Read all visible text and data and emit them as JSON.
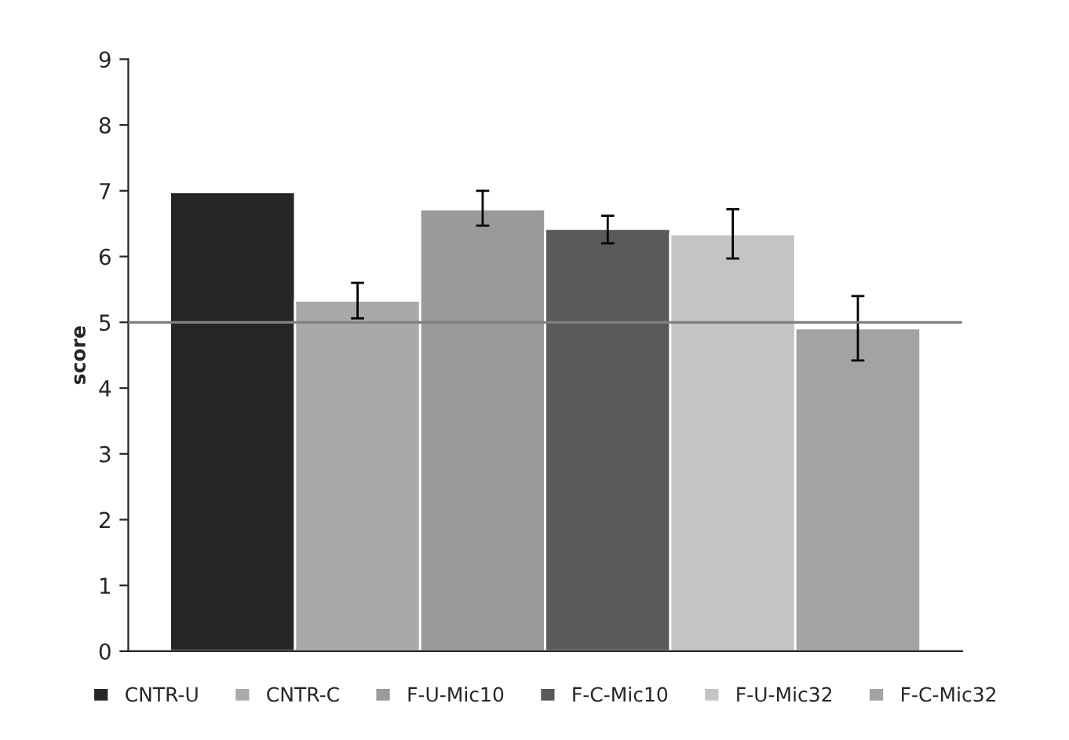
{
  "chart_data": {
    "type": "bar",
    "ylabel": "score",
    "categories": [
      null
    ],
    "series": [
      {
        "name": "CNTR-U",
        "color": "#262626",
        "values": [
          6.98
        ]
      },
      {
        "name": "CNTR-C",
        "color": "#a9a9a9",
        "values": [
          5.33
        ],
        "errors": [
          [
            5.06,
            5.6
          ]
        ]
      },
      {
        "name": "F-U-Mic10",
        "color": "#9a9a9a",
        "values": [
          6.72
        ],
        "errors": [
          [
            6.47,
            7.0
          ]
        ]
      },
      {
        "name": "F-C-Mic10",
        "color": "#595959",
        "values": [
          6.42
        ],
        "errors": [
          [
            6.2,
            6.62
          ]
        ]
      },
      {
        "name": "F-U-Mic32",
        "color": "#c4c4c4",
        "values": [
          6.34
        ],
        "errors": [
          [
            5.97,
            6.72
          ]
        ]
      },
      {
        "name": "F-C-Mic32",
        "color": "#a3a3a3",
        "values": [
          4.91
        ],
        "errors": [
          [
            4.42,
            5.4
          ]
        ]
      }
    ],
    "ylim": [
      0,
      9
    ],
    "yticks": [
      0,
      1,
      2,
      3,
      4,
      5,
      6,
      7,
      8,
      9
    ],
    "ref_lines": [
      {
        "axis": "y",
        "value": 5,
        "color": "#808080"
      }
    ],
    "grid": false,
    "legend": "bottom"
  }
}
